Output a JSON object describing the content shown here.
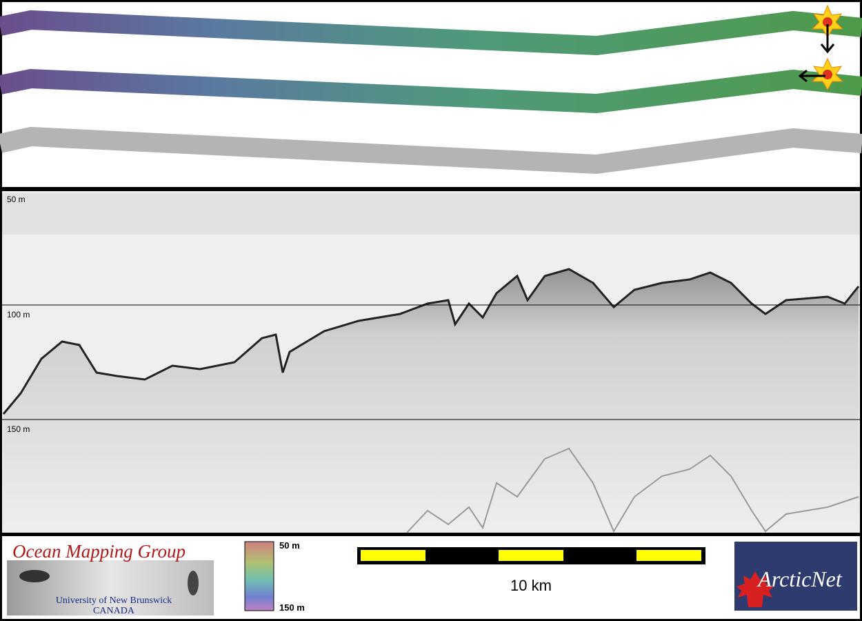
{
  "echogram": {
    "depth_labels": [
      "50 m",
      "100 m",
      "150 m"
    ]
  },
  "footer": {
    "logo_title": "Ocean Mapping Group",
    "logo_subtitle": "University of New Brunswick",
    "logo_country": "CANADA",
    "colorbar_labels": [
      "50 m",
      "150 m"
    ],
    "scale_label": "10 km",
    "partner_logo": "ArcticNet"
  }
}
